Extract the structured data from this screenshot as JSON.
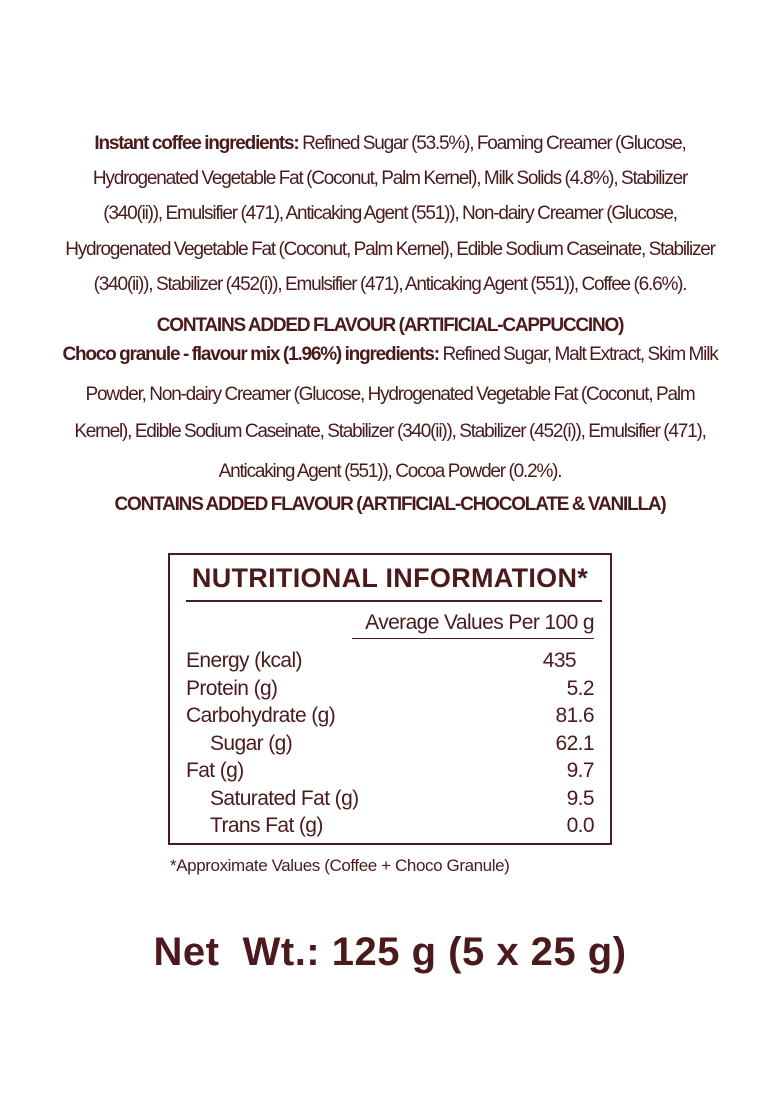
{
  "colors": {
    "text": "#4a1a1c",
    "background": "#ffffff"
  },
  "ingredients": {
    "lines": [
      {
        "bold": "Instant coffee ingredients:",
        "text": " Refined Sugar (53.5%), Foaming Creamer (Glucose,"
      },
      {
        "bold": "",
        "text": "Hydrogenated Vegetable Fat (Coconut, Palm Kernel), Milk Solids (4.8%), Stabilizer"
      },
      {
        "bold": "",
        "text": "(340(ii)), Emulsifier (471), Anticaking Agent (551)), Non-dairy Creamer (Glucose,"
      },
      {
        "bold": "",
        "text": "Hydrogenated Vegetable Fat (Coconut, Palm Kernel), Edible Sodium Caseinate, Stabilizer"
      },
      {
        "bold": "",
        "text": "(340(ii)), Stabilizer (452(i)), Emulsifier (471), Anticaking Agent (551)), Coffee (6.6%)."
      },
      {
        "bold": "CONTAINS ADDED FLAVOUR (ARTIFICIAL-CAPPUCCINO)",
        "text": ""
      },
      {
        "bold": "Choco granule - flavour mix (1.96%) ingredients:",
        "text": " Refined Sugar, Malt Extract, Skim Milk"
      },
      {
        "bold": "",
        "text": "Powder, Non-dairy Creamer (Glucose, Hydrogenated Vegetable Fat (Coconut, Palm"
      },
      {
        "bold": "",
        "text": "Kernel), Edible Sodium Caseinate, Stabilizer (340(ii)), Stabilizer (452(i)), Emulsifier (471),"
      },
      {
        "bold": "",
        "text": "Anticaking Agent (551)), Cocoa Powder (0.2%)."
      },
      {
        "bold": "CONTAINS ADDED FLAVOUR (ARTIFICIAL-CHOCOLATE & VANILLA)",
        "text": ""
      }
    ]
  },
  "nutrition": {
    "title": "NUTRITIONAL INFORMATION*",
    "subheader": "Average Values Per 100 g",
    "rows": [
      {
        "label": "Energy (kcal)",
        "value": "435"
      },
      {
        "label": "Protein (g)",
        "value": "5.2"
      },
      {
        "label": "Carbohydrate (g)",
        "value": "81.6"
      },
      {
        "label": "Sugar (g)",
        "value": "62.1"
      },
      {
        "label": "Fat (g)",
        "value": "9.7"
      },
      {
        "label": "Saturated Fat (g)",
        "value": "9.5"
      },
      {
        "label": "Trans Fat (g)",
        "value": "0.0"
      }
    ],
    "footnote": "*Approximate Values (Coffee + Choco Granule)"
  },
  "net_weight": "Net  Wt.: 125 g (5 x 25 g)"
}
